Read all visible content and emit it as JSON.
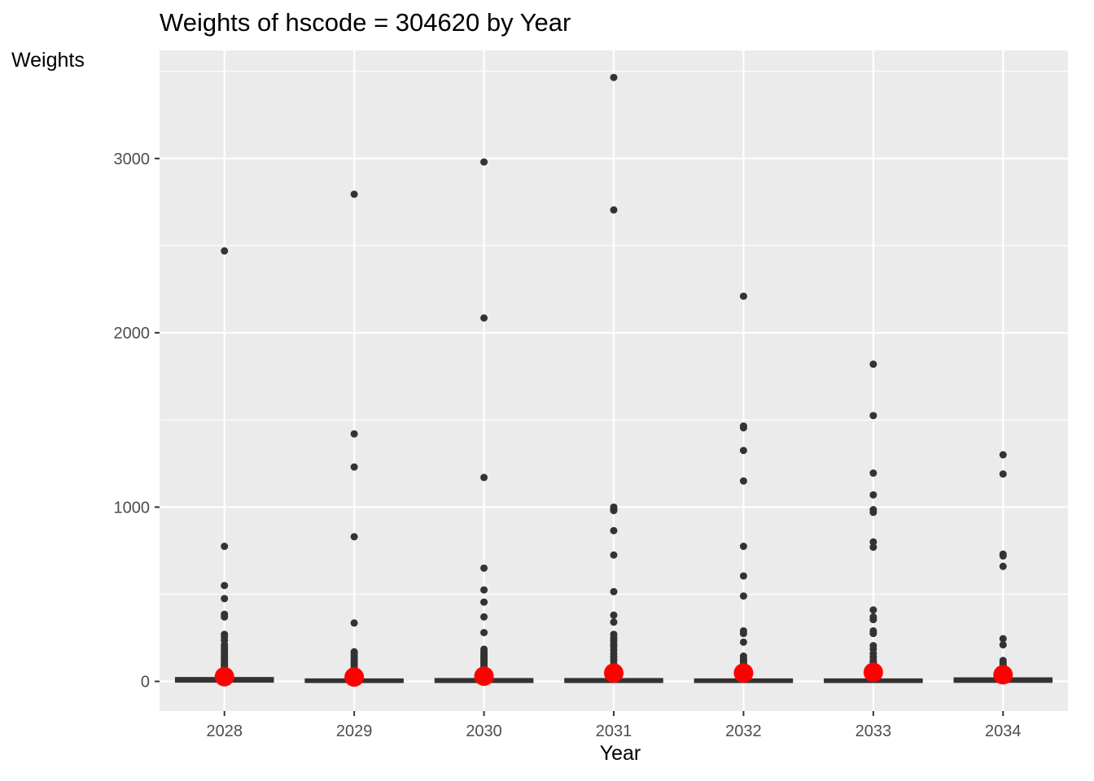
{
  "chart_data": {
    "type": "boxplot",
    "title": "Weights of hscode = 304620 by Year",
    "xlabel": "Year",
    "ylabel": "Weights",
    "categories": [
      "2028",
      "2029",
      "2030",
      "2031",
      "2032",
      "2033",
      "2034"
    ],
    "ylim": [
      -170,
      3620
    ],
    "y_ticks": [
      0,
      1000,
      2000,
      3000
    ],
    "grid": true,
    "panel_background": "#ebebeb",
    "outlier_color": "#333333",
    "mean_marker_color": "#ff0000",
    "box_color": "#333333",
    "boxes": [
      {
        "year": "2028",
        "q1": 2,
        "median": 8,
        "q3": 16
      },
      {
        "year": "2029",
        "q1": 0,
        "median": 3,
        "q3": 8
      },
      {
        "year": "2030",
        "q1": 0,
        "median": 4,
        "q3": 10
      },
      {
        "year": "2031",
        "q1": 0,
        "median": 4,
        "q3": 10
      },
      {
        "year": "2032",
        "q1": 0,
        "median": 3,
        "q3": 8
      },
      {
        "year": "2033",
        "q1": 0,
        "median": 3,
        "q3": 8
      },
      {
        "year": "2034",
        "q1": 1,
        "median": 6,
        "q3": 14
      }
    ],
    "means": [
      {
        "year": "2028",
        "value": 27
      },
      {
        "year": "2029",
        "value": 25
      },
      {
        "year": "2030",
        "value": 30
      },
      {
        "year": "2031",
        "value": 48
      },
      {
        "year": "2032",
        "value": 48
      },
      {
        "year": "2033",
        "value": 52
      },
      {
        "year": "2034",
        "value": 38
      }
    ],
    "outliers": [
      {
        "year": "2028",
        "values": [
          2470,
          775,
          550,
          475,
          385,
          370,
          270,
          255,
          235,
          210,
          195,
          180,
          170,
          160,
          150,
          140,
          130,
          120,
          110,
          100,
          95,
          90,
          80,
          75,
          70,
          60,
          55,
          50,
          45,
          40
        ]
      },
      {
        "year": "2029",
        "values": [
          2795,
          1420,
          1230,
          830,
          335,
          170,
          160,
          145,
          130,
          120,
          110,
          100,
          90,
          80,
          70,
          60,
          50,
          45
        ]
      },
      {
        "year": "2030",
        "values": [
          2980,
          2085,
          1170,
          650,
          525,
          455,
          370,
          280,
          185,
          170,
          160,
          150,
          140,
          130,
          120,
          110,
          100,
          90,
          80,
          70,
          60,
          50,
          45
        ]
      },
      {
        "year": "2031",
        "values": [
          3465,
          2705,
          1000,
          990,
          980,
          865,
          725,
          515,
          380,
          340,
          270,
          250,
          235,
          215,
          200,
          180,
          160,
          140,
          120,
          100,
          90,
          80,
          70,
          60,
          50
        ]
      },
      {
        "year": "2032",
        "values": [
          2210,
          1465,
          1455,
          1325,
          1150,
          775,
          605,
          490,
          290,
          275,
          225,
          145,
          130,
          120,
          110,
          100,
          90,
          80,
          70,
          60,
          50
        ]
      },
      {
        "year": "2033",
        "values": [
          1820,
          1525,
          1195,
          1070,
          985,
          970,
          800,
          770,
          410,
          370,
          355,
          290,
          275,
          205,
          185,
          160,
          140,
          120,
          110,
          100,
          90,
          80,
          70,
          60
        ]
      },
      {
        "year": "2034",
        "values": [
          1300,
          1190,
          730,
          720,
          660,
          245,
          210,
          120,
          110,
          100,
          90,
          80,
          70,
          60,
          55
        ]
      }
    ]
  }
}
